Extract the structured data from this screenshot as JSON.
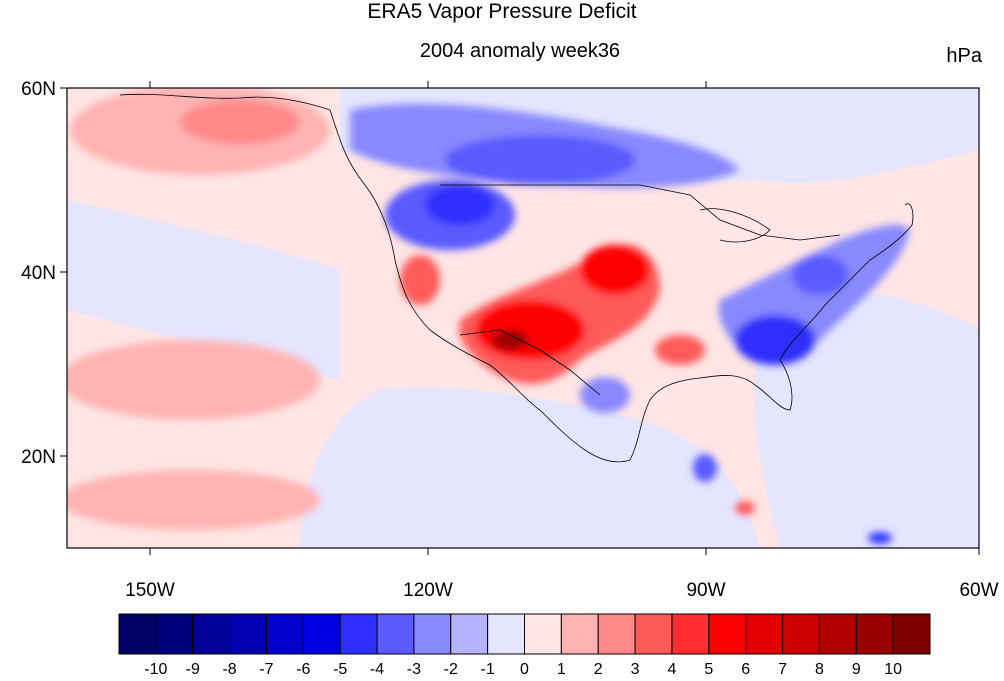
{
  "title": "ERA5 Vapor Pressure Deficit",
  "subtitle": "2004 anomaly week36",
  "units": "hPa",
  "map": {
    "lat_labels": [
      "60N",
      "40N",
      "20N"
    ],
    "lon_labels": [
      "150W",
      "120W",
      "90W",
      "60W"
    ],
    "lat_range": [
      10,
      60
    ],
    "lon_range": [
      -159,
      -61
    ]
  },
  "colorbar": {
    "colors": [
      "#000066",
      "#00007f",
      "#000099",
      "#0000b2",
      "#0000cc",
      "#0000e5",
      "#2e2eff",
      "#5a5aff",
      "#8888ff",
      "#b3b3ff",
      "#e5e5ff",
      "#ffe5e5",
      "#ffb3b3",
      "#ff8888",
      "#ff5a5a",
      "#ff2e2e",
      "#ff0000",
      "#e50000",
      "#cc0000",
      "#b20000",
      "#990000",
      "#7f0000"
    ],
    "labels": [
      "-10",
      "-9",
      "-8",
      "-7",
      "-6",
      "-5",
      "-4",
      "-3",
      "-2",
      "-1",
      "0",
      "1",
      "2",
      "3",
      "4",
      "5",
      "6",
      "7",
      "8",
      "9",
      "10"
    ]
  },
  "features": [
    {
      "name": "northeast-pacific-warm",
      "value": 2,
      "color": "#ff8888"
    },
    {
      "name": "canada-dry-negative",
      "value": -3,
      "color": "#5a5aff"
    },
    {
      "name": "pacific-northwest-negative",
      "value": -5,
      "color": "#2e2eff"
    },
    {
      "name": "southwest-positive",
      "value": 6,
      "color": "#ff0000"
    },
    {
      "name": "southwest-peak",
      "value": 9,
      "color": "#990000"
    },
    {
      "name": "great-plains-positive",
      "value": 5,
      "color": "#ff2e2e"
    },
    {
      "name": "southeast-negative",
      "value": -5,
      "color": "#2e2eff"
    },
    {
      "name": "northeast-negative",
      "value": -3,
      "color": "#5a5aff"
    }
  ]
}
